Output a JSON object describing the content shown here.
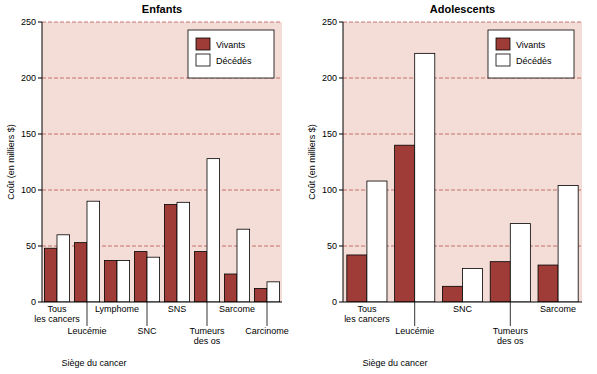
{
  "chart_data": [
    {
      "type": "bar",
      "title": "Enfants",
      "x_label": "Siège du cancer",
      "y_label": "Coût (en milliers $)",
      "categories": [
        "Tous les cancers",
        "Leucémie",
        "Lymphome",
        "SNC",
        "SNS",
        "Tumeurs des os",
        "Sarcome",
        "Carcinome"
      ],
      "series": [
        {
          "name": "Vivants",
          "color": "#a03c37",
          "values": [
            48,
            53,
            37,
            45,
            87,
            45,
            25,
            12
          ]
        },
        {
          "name": "Décédés",
          "color": "#ffffff",
          "values": [
            60,
            90,
            37,
            40,
            89,
            128,
            65,
            18
          ]
        }
      ],
      "ylim": [
        0,
        250
      ],
      "yticks": [
        0,
        50,
        100,
        150,
        200,
        250
      ],
      "grid": true,
      "legend": "top-right"
    },
    {
      "type": "bar",
      "title": "Adolescents",
      "x_label": "Siège du cancer",
      "y_label": "Coût (en milliers $)",
      "categories": [
        "Tous les cancers",
        "Leucémie",
        "SNC",
        "Tumeurs des os",
        "Sarcome"
      ],
      "series": [
        {
          "name": "Vivants",
          "color": "#a03c37",
          "values": [
            42,
            140,
            14,
            36,
            33
          ]
        },
        {
          "name": "Décédés",
          "color": "#ffffff",
          "values": [
            108,
            222,
            30,
            70,
            104
          ]
        }
      ],
      "ylim": [
        0,
        250
      ],
      "yticks": [
        0,
        50,
        100,
        150,
        200,
        250
      ],
      "grid": true,
      "legend": "top-right"
    }
  ]
}
